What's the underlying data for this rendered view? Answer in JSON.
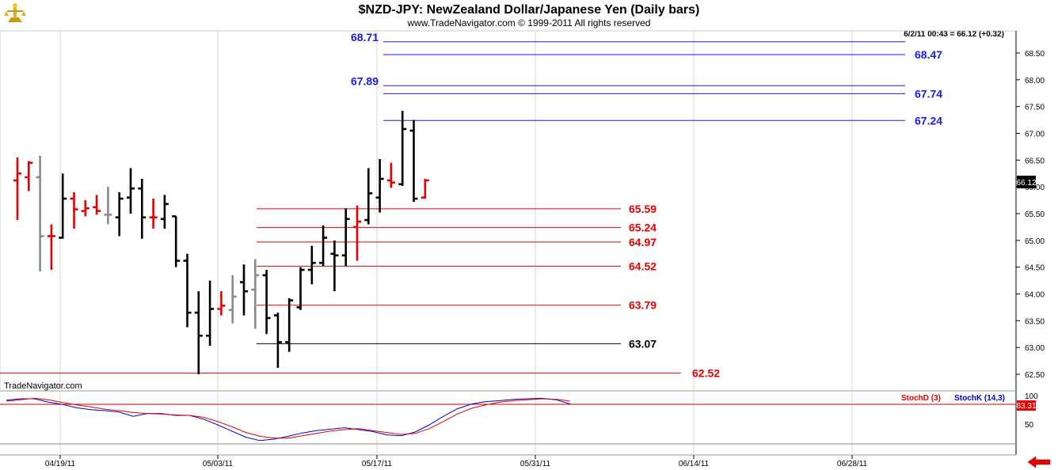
{
  "app": {
    "logo_icon": "trade-navigator-logo-icon",
    "watermark": "TradeNavigator.com",
    "nav_arrow_icon": "left-arrow-icon"
  },
  "chart_data": {
    "type": "ohlc",
    "title": "$NZD-JPY:  NewZealand Dollar/Japanese Yen  (Daily bars)",
    "subtitle": "www.TradeNavigator.com © 1999-2011 All rights reserved",
    "readout": "6/2/11 00:43 = 66.12 (+0.32)",
    "last_price": "66.12",
    "ylim": [
      62.3,
      68.85
    ],
    "yticks": [
      "62.50",
      "63.00",
      "63.50",
      "64.00",
      "64.50",
      "65.00",
      "65.50",
      "66.00",
      "66.50",
      "67.00",
      "67.50",
      "68.00",
      "68.50"
    ],
    "xticks": [
      "04/19/11",
      "05/03/11",
      "05/17/11",
      "05/31/11",
      "06/14/11",
      "06/28/11"
    ],
    "bars": [
      {
        "o": 66.12,
        "h": 66.55,
        "l": 65.38,
        "c": 66.25,
        "color": "red"
      },
      {
        "o": 66.18,
        "h": 66.48,
        "l": 65.92,
        "c": 66.45,
        "color": "red"
      },
      {
        "o": 66.18,
        "h": 66.58,
        "l": 64.42,
        "c": 65.08,
        "color": "gray"
      },
      {
        "o": 65.08,
        "h": 65.3,
        "l": 64.45,
        "c": 65.08,
        "color": "red"
      },
      {
        "o": 65.05,
        "h": 66.25,
        "l": 65.03,
        "c": 65.78,
        "color": "black"
      },
      {
        "o": 65.78,
        "h": 65.9,
        "l": 65.22,
        "c": 65.58,
        "color": "red"
      },
      {
        "o": 65.55,
        "h": 65.75,
        "l": 65.45,
        "c": 65.6,
        "color": "red"
      },
      {
        "o": 65.62,
        "h": 65.85,
        "l": 65.48,
        "c": 65.55,
        "color": "red"
      },
      {
        "o": 65.48,
        "h": 66.0,
        "l": 65.3,
        "c": 65.48,
        "color": "gray"
      },
      {
        "o": 65.43,
        "h": 65.9,
        "l": 65.08,
        "c": 65.78,
        "color": "black"
      },
      {
        "o": 65.8,
        "h": 66.35,
        "l": 65.5,
        "c": 65.97,
        "color": "black"
      },
      {
        "o": 65.97,
        "h": 66.15,
        "l": 65.03,
        "c": 65.43,
        "color": "black"
      },
      {
        "o": 65.43,
        "h": 65.78,
        "l": 65.22,
        "c": 65.43,
        "color": "red"
      },
      {
        "o": 65.4,
        "h": 65.85,
        "l": 65.22,
        "c": 65.68,
        "color": "black"
      },
      {
        "o": 65.45,
        "h": 65.45,
        "l": 64.5,
        "c": 64.62,
        "color": "black"
      },
      {
        "o": 64.62,
        "h": 64.75,
        "l": 63.38,
        "c": 63.65,
        "color": "black"
      },
      {
        "o": 63.65,
        "h": 64.05,
        "l": 62.5,
        "c": 63.22,
        "color": "black"
      },
      {
        "o": 63.22,
        "h": 64.25,
        "l": 63.03,
        "c": 63.72,
        "color": "black"
      },
      {
        "o": 63.72,
        "h": 64.05,
        "l": 63.6,
        "c": 63.78,
        "color": "red"
      },
      {
        "o": 63.7,
        "h": 64.35,
        "l": 63.45,
        "c": 63.95,
        "color": "gray"
      },
      {
        "o": 64.22,
        "h": 64.55,
        "l": 63.6,
        "c": 64.05,
        "color": "black"
      },
      {
        "o": 64.08,
        "h": 64.65,
        "l": 63.35,
        "c": 64.35,
        "color": "gray"
      },
      {
        "o": 64.35,
        "h": 64.45,
        "l": 63.25,
        "c": 63.55,
        "color": "black"
      },
      {
        "o": 63.6,
        "h": 63.65,
        "l": 62.62,
        "c": 63.1,
        "color": "black"
      },
      {
        "o": 63.1,
        "h": 63.92,
        "l": 62.92,
        "c": 63.88,
        "color": "black"
      },
      {
        "o": 63.75,
        "h": 64.5,
        "l": 63.7,
        "c": 64.45,
        "color": "black"
      },
      {
        "o": 64.45,
        "h": 64.9,
        "l": 64.18,
        "c": 64.58,
        "color": "black"
      },
      {
        "o": 64.58,
        "h": 65.28,
        "l": 64.52,
        "c": 65.05,
        "color": "black"
      },
      {
        "o": 64.75,
        "h": 65.0,
        "l": 64.05,
        "c": 64.72,
        "color": "black"
      },
      {
        "o": 64.72,
        "h": 65.6,
        "l": 64.52,
        "c": 65.4,
        "color": "black"
      },
      {
        "o": 65.25,
        "h": 65.65,
        "l": 64.62,
        "c": 65.35,
        "color": "red"
      },
      {
        "o": 65.38,
        "h": 66.35,
        "l": 65.3,
        "c": 65.88,
        "color": "black"
      },
      {
        "o": 65.8,
        "h": 66.52,
        "l": 65.52,
        "c": 66.15,
        "color": "black"
      },
      {
        "o": 66.12,
        "h": 66.45,
        "l": 65.98,
        "c": 66.08,
        "color": "red"
      },
      {
        "o": 66.05,
        "h": 67.42,
        "l": 66.02,
        "c": 67.08,
        "color": "black"
      },
      {
        "o": 67.05,
        "h": 67.25,
        "l": 65.72,
        "c": 65.78,
        "color": "black"
      },
      {
        "o": 65.8,
        "h": 66.15,
        "l": 65.78,
        "c": 66.12,
        "color": "red"
      }
    ],
    "levels_blue": [
      {
        "value": 68.71,
        "label": "68.71",
        "side": "left"
      },
      {
        "value": 68.47,
        "label": "68.47",
        "side": "right"
      },
      {
        "value": 67.89,
        "label": "67.89",
        "side": "left"
      },
      {
        "value": 67.74,
        "label": "67.74",
        "side": "right"
      },
      {
        "value": 67.24,
        "label": "67.24",
        "side": "right"
      }
    ],
    "levels_red": [
      {
        "value": 65.59,
        "label": "65.59",
        "color": "red"
      },
      {
        "value": 65.24,
        "label": "65.24",
        "color": "red"
      },
      {
        "value": 64.97,
        "label": "64.97",
        "color": "red"
      },
      {
        "value": 64.52,
        "label": "64.52",
        "color": "red"
      },
      {
        "value": 63.79,
        "label": "63.79",
        "color": "red"
      },
      {
        "value": 63.07,
        "label": "63.07",
        "color": "black"
      }
    ],
    "level_bottom": {
      "value": 62.52,
      "label": "62.52"
    },
    "stoch": {
      "d_label": "StochD (3)",
      "k_label": "StochK (14,3)",
      "ytick_100": "100",
      "ytick_50": "50",
      "readout": "83.31",
      "level_line": 83.31,
      "ylim": [
        0,
        100
      ],
      "stochD": [
        90,
        93,
        96,
        93,
        87,
        82,
        78,
        73,
        70,
        66,
        64,
        63,
        61,
        60,
        56,
        47,
        36,
        24,
        16,
        12,
        12,
        17,
        22,
        27,
        30,
        32,
        28,
        24,
        20,
        22,
        32,
        47,
        63,
        75,
        82,
        88,
        91,
        93,
        95,
        94,
        90
      ],
      "stochK": [
        92,
        95,
        95,
        88,
        83,
        76,
        72,
        70,
        67,
        58,
        64,
        64,
        60,
        60,
        52,
        40,
        27,
        14,
        7,
        10,
        16,
        23,
        28,
        31,
        34,
        30,
        26,
        19,
        17,
        25,
        40,
        58,
        74,
        84,
        89,
        91,
        94,
        95,
        96,
        93,
        84
      ]
    },
    "colors": {
      "red": "#e60000",
      "black": "#000000",
      "gray": "#8a8a8a",
      "blue": "#0000cc",
      "levelBlue": "#1a1aee"
    }
  }
}
